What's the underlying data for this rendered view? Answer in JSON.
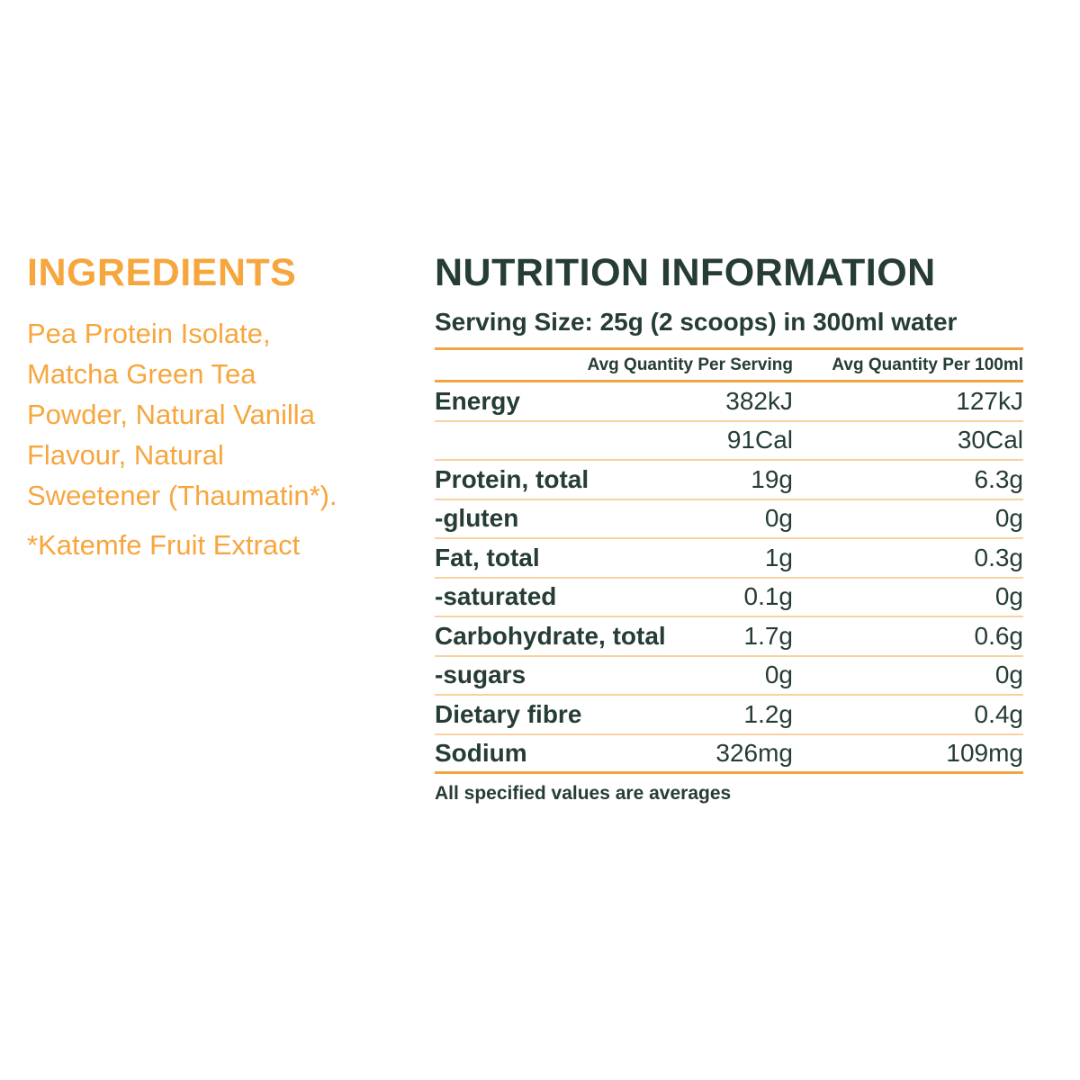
{
  "ingredients": {
    "title": "INGREDIENTS",
    "list": "Pea Protein Isolate, Matcha Green Tea Powder, Natural Vanilla Flavour, Natural Sweetener (Thaumatin*).",
    "footnote": "*Katemfe Fruit Extract"
  },
  "nutrition": {
    "title": "NUTRITION INFORMATION",
    "serving_size": "Serving Size: 25g  (2 scoops) in 300ml water",
    "columns": [
      "Avg Quantity Per Serving",
      "Avg Quantity Per 100ml"
    ],
    "rows": [
      {
        "label": "Energy",
        "per_serving": "382kJ",
        "per_100ml": "127kJ"
      },
      {
        "label": "",
        "per_serving": "91Cal",
        "per_100ml": "30Cal"
      },
      {
        "label": "Protein, total",
        "per_serving": "19g",
        "per_100ml": "6.3g"
      },
      {
        "label": "-gluten",
        "per_serving": "0g",
        "per_100ml": "0g"
      },
      {
        "label": "Fat, total",
        "per_serving": "1g",
        "per_100ml": "0.3g"
      },
      {
        "label": "-saturated",
        "per_serving": "0.1g",
        "per_100ml": "0g"
      },
      {
        "label": "Carbohydrate, total",
        "per_serving": "1.7g",
        "per_100ml": "0.6g"
      },
      {
        "label": "-sugars",
        "per_serving": "0g",
        "per_100ml": "0g"
      },
      {
        "label": "Dietary fibre",
        "per_serving": "1.2g",
        "per_100ml": "0.4g"
      },
      {
        "label": "Sodium",
        "per_serving": "326mg",
        "per_100ml": "109mg"
      }
    ],
    "footnote": "All specified values are averages"
  },
  "colors": {
    "orange": "#F7A63E",
    "line_orange": "#F3A440",
    "dark_green": "#263D33"
  }
}
